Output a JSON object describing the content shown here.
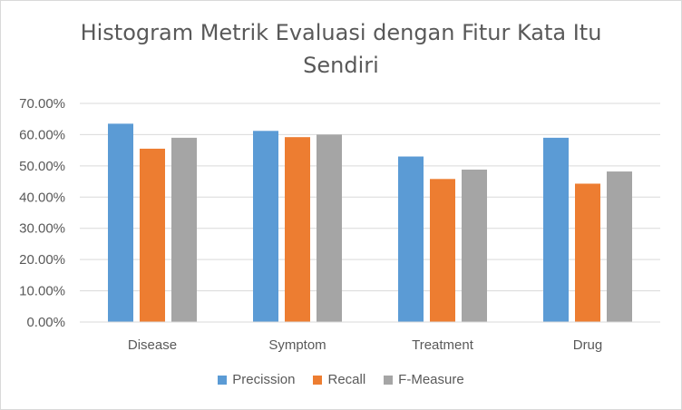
{
  "chart_data": {
    "type": "bar",
    "title": "Histogram Metrik Evaluasi dengan Fitur Kata Itu Sendiri",
    "title_lines": [
      "Histogram Metrik Evaluasi dengan Fitur Kata Itu",
      "Sendiri"
    ],
    "categories": [
      "Disease",
      "Symptom",
      "Treatment",
      "Drug"
    ],
    "series": [
      {
        "name": "Precission",
        "color": "#5b9bd5",
        "values": [
          63.5,
          61.2,
          53.0,
          59.0
        ]
      },
      {
        "name": "Recall",
        "color": "#ed7d31",
        "values": [
          55.5,
          59.2,
          45.8,
          44.3
        ]
      },
      {
        "name": "F-Measure",
        "color": "#a5a5a5",
        "values": [
          59.0,
          60.0,
          48.8,
          48.2
        ]
      }
    ],
    "ylim": [
      0,
      70
    ],
    "yticks": [
      "0.00%",
      "10.00%",
      "20.00%",
      "30.00%",
      "40.00%",
      "50.00%",
      "60.00%",
      "70.00%"
    ],
    "grid": true,
    "legend_position": "bottom"
  }
}
